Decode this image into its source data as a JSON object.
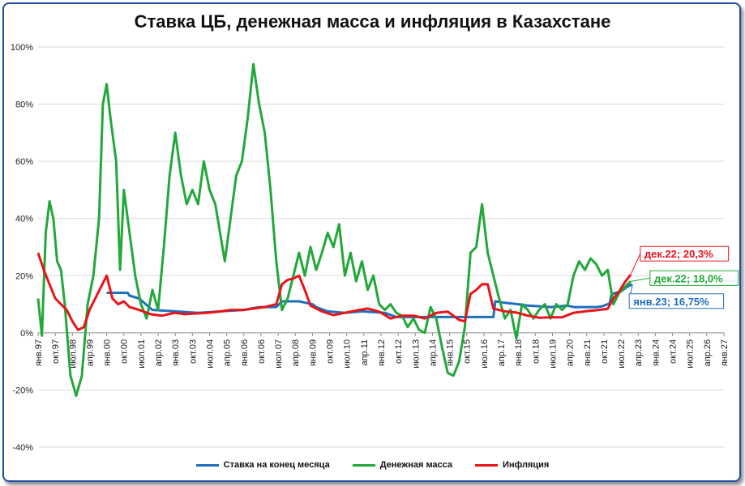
{
  "chart_data": {
    "type": "line",
    "title": "Ставка ЦБ, денежная масса и инфляция в Казахстане",
    "ylim": [
      -40,
      100
    ],
    "y_ticks": [
      "-40%",
      "-20%",
      "0%",
      "20%",
      "40%",
      "60%",
      "80%",
      "100%"
    ],
    "y_tick_values": [
      -40,
      -20,
      0,
      20,
      40,
      60,
      80,
      100
    ],
    "grid": true,
    "legend_position": "bottom",
    "x_start": "1997-01",
    "x_end": "2027-01",
    "x_tick_labels": [
      "янв.97",
      "окт.97",
      "июл.98",
      "апр.99",
      "янв.00",
      "окт.00",
      "июл.01",
      "апр.02",
      "янв.03",
      "окт.03",
      "июл.04",
      "апр.05",
      "янв.06",
      "окт.06",
      "июл.07",
      "апр.08",
      "янв.09",
      "окт.09",
      "июл.10",
      "апр.11",
      "янв.12",
      "окт.12",
      "июл.13",
      "апр.14",
      "янв.15",
      "окт.15",
      "июл.16",
      "апр.17",
      "янв.18",
      "окт.18",
      "июл.19",
      "апр.20",
      "янв.21",
      "окт.21",
      "июл.22",
      "апр.23",
      "янв.24",
      "окт.24",
      "июл.25",
      "апр.26",
      "янв.27"
    ],
    "series": [
      {
        "name": "Ставка на конец месяца",
        "color": "#1f6fbf",
        "points": [
          [
            "2000-01",
            14
          ],
          [
            "2000-12",
            14
          ],
          [
            "2001-01",
            13
          ],
          [
            "2001-06",
            12
          ],
          [
            "2002-01",
            8
          ],
          [
            "2003-01",
            7.5
          ],
          [
            "2004-01",
            7
          ],
          [
            "2005-01",
            7.5
          ],
          [
            "2006-01",
            8
          ],
          [
            "2006-09",
            9
          ],
          [
            "2007-06",
            9
          ],
          [
            "2007-09",
            11
          ],
          [
            "2008-06",
            11
          ],
          [
            "2009-01",
            10
          ],
          [
            "2009-03",
            9
          ],
          [
            "2009-09",
            7.5
          ],
          [
            "2010-06",
            7
          ],
          [
            "2011-03",
            7.5
          ],
          [
            "2012-03",
            7
          ],
          [
            "2012-09",
            5.5
          ],
          [
            "2013-06",
            5.5
          ],
          [
            "2015-01",
            5.5
          ],
          [
            "2015-09",
            5.5
          ],
          [
            "2016-06",
            5.5
          ],
          [
            "2016-12",
            5.5
          ],
          [
            "2017-01",
            11
          ],
          [
            "2017-06",
            10.5
          ],
          [
            "2018-01",
            10
          ],
          [
            "2018-06",
            9.5
          ],
          [
            "2019-01",
            9.25
          ],
          [
            "2019-06",
            9
          ],
          [
            "2020-03",
            9.5
          ],
          [
            "2020-06",
            9
          ],
          [
            "2021-06",
            9
          ],
          [
            "2021-09",
            9.25
          ],
          [
            "2022-01",
            10.25
          ],
          [
            "2022-02",
            13.5
          ],
          [
            "2022-07",
            14.5
          ],
          [
            "2022-10",
            16
          ],
          [
            "2022-12",
            16.75
          ],
          [
            "2023-01",
            16.75
          ]
        ]
      },
      {
        "name": "Денежная масса",
        "color": "#22a83a",
        "points": [
          [
            "1997-01",
            12
          ],
          [
            "1997-03",
            -1
          ],
          [
            "1997-05",
            35
          ],
          [
            "1997-07",
            46
          ],
          [
            "1997-09",
            40
          ],
          [
            "1997-11",
            25
          ],
          [
            "1998-01",
            22
          ],
          [
            "1998-03",
            10
          ],
          [
            "1998-06",
            -15
          ],
          [
            "1998-09",
            -22
          ],
          [
            "1998-12",
            -15
          ],
          [
            "1999-03",
            10
          ],
          [
            "1999-06",
            20
          ],
          [
            "1999-09",
            40
          ],
          [
            "1999-11",
            80
          ],
          [
            "2000-01",
            87
          ],
          [
            "2000-03",
            75
          ],
          [
            "2000-06",
            60
          ],
          [
            "2000-08",
            22
          ],
          [
            "2000-10",
            50
          ],
          [
            "2001-01",
            35
          ],
          [
            "2001-04",
            20
          ],
          [
            "2001-07",
            10
          ],
          [
            "2001-10",
            5
          ],
          [
            "2002-01",
            15
          ],
          [
            "2002-04",
            8
          ],
          [
            "2002-07",
            30
          ],
          [
            "2002-10",
            55
          ],
          [
            "2003-01",
            70
          ],
          [
            "2003-04",
            55
          ],
          [
            "2003-07",
            45
          ],
          [
            "2003-10",
            50
          ],
          [
            "2004-01",
            45
          ],
          [
            "2004-04",
            60
          ],
          [
            "2004-07",
            50
          ],
          [
            "2004-10",
            45
          ],
          [
            "2005-03",
            25
          ],
          [
            "2005-06",
            40
          ],
          [
            "2005-09",
            55
          ],
          [
            "2005-12",
            60
          ],
          [
            "2006-03",
            75
          ],
          [
            "2006-06",
            94
          ],
          [
            "2006-09",
            80
          ],
          [
            "2006-12",
            70
          ],
          [
            "2007-03",
            50
          ],
          [
            "2007-06",
            25
          ],
          [
            "2007-09",
            8
          ],
          [
            "2007-12",
            12
          ],
          [
            "2008-03",
            20
          ],
          [
            "2008-06",
            28
          ],
          [
            "2008-09",
            20
          ],
          [
            "2008-12",
            30
          ],
          [
            "2009-03",
            22
          ],
          [
            "2009-06",
            28
          ],
          [
            "2009-09",
            35
          ],
          [
            "2009-12",
            30
          ],
          [
            "2010-03",
            38
          ],
          [
            "2010-06",
            20
          ],
          [
            "2010-09",
            28
          ],
          [
            "2010-12",
            18
          ],
          [
            "2011-03",
            25
          ],
          [
            "2011-06",
            15
          ],
          [
            "2011-09",
            20
          ],
          [
            "2011-12",
            10
          ],
          [
            "2012-03",
            8
          ],
          [
            "2012-06",
            10
          ],
          [
            "2012-09",
            7
          ],
          [
            "2012-12",
            6
          ],
          [
            "2013-03",
            2
          ],
          [
            "2013-06",
            5
          ],
          [
            "2013-09",
            1
          ],
          [
            "2013-12",
            0
          ],
          [
            "2014-03",
            9
          ],
          [
            "2014-06",
            5
          ],
          [
            "2014-09",
            -5
          ],
          [
            "2014-12",
            -14
          ],
          [
            "2015-03",
            -15
          ],
          [
            "2015-06",
            -10
          ],
          [
            "2015-09",
            2
          ],
          [
            "2015-12",
            28
          ],
          [
            "2016-03",
            30
          ],
          [
            "2016-06",
            45
          ],
          [
            "2016-09",
            28
          ],
          [
            "2016-12",
            20
          ],
          [
            "2017-03",
            12
          ],
          [
            "2017-06",
            5
          ],
          [
            "2017-09",
            8
          ],
          [
            "2017-12",
            -2
          ],
          [
            "2018-03",
            10
          ],
          [
            "2018-06",
            8
          ],
          [
            "2018-09",
            5
          ],
          [
            "2018-12",
            8
          ],
          [
            "2019-03",
            10
          ],
          [
            "2019-06",
            5
          ],
          [
            "2019-09",
            10
          ],
          [
            "2019-12",
            8
          ],
          [
            "2020-03",
            10
          ],
          [
            "2020-06",
            20
          ],
          [
            "2020-09",
            25
          ],
          [
            "2020-12",
            22
          ],
          [
            "2021-03",
            26
          ],
          [
            "2021-06",
            24
          ],
          [
            "2021-09",
            20
          ],
          [
            "2021-12",
            22
          ],
          [
            "2022-03",
            10
          ],
          [
            "2022-06",
            14
          ],
          [
            "2022-09",
            16
          ],
          [
            "2022-12",
            18
          ]
        ]
      },
      {
        "name": "Инфляция",
        "color": "#e8141a",
        "points": [
          [
            "1997-01",
            28
          ],
          [
            "1997-04",
            22
          ],
          [
            "1997-07",
            17
          ],
          [
            "1997-10",
            12
          ],
          [
            "1998-01",
            10
          ],
          [
            "1998-04",
            8
          ],
          [
            "1998-07",
            4
          ],
          [
            "1998-10",
            1
          ],
          [
            "1999-01",
            2
          ],
          [
            "1999-04",
            8
          ],
          [
            "1999-07",
            12
          ],
          [
            "1999-10",
            16
          ],
          [
            "2000-01",
            20
          ],
          [
            "2000-04",
            12
          ],
          [
            "2000-07",
            10
          ],
          [
            "2000-10",
            11
          ],
          [
            "2001-01",
            9
          ],
          [
            "2001-06",
            8
          ],
          [
            "2001-12",
            6.5
          ],
          [
            "2002-06",
            6
          ],
          [
            "2003-01",
            7
          ],
          [
            "2003-06",
            6.5
          ],
          [
            "2004-01",
            6.8
          ],
          [
            "2004-06",
            7
          ],
          [
            "2005-01",
            7.5
          ],
          [
            "2005-06",
            8
          ],
          [
            "2006-01",
            8
          ],
          [
            "2006-06",
            8.5
          ],
          [
            "2006-12",
            9
          ],
          [
            "2007-06",
            10
          ],
          [
            "2007-09",
            17
          ],
          [
            "2007-12",
            18.5
          ],
          [
            "2008-03",
            19
          ],
          [
            "2008-06",
            20
          ],
          [
            "2008-09",
            15
          ],
          [
            "2008-12",
            9.5
          ],
          [
            "2009-06",
            7.5
          ],
          [
            "2009-12",
            6.2
          ],
          [
            "2010-06",
            7
          ],
          [
            "2010-12",
            7.8
          ],
          [
            "2011-06",
            8.5
          ],
          [
            "2011-12",
            7.4
          ],
          [
            "2012-06",
            5
          ],
          [
            "2012-12",
            6
          ],
          [
            "2013-06",
            6
          ],
          [
            "2013-12",
            5
          ],
          [
            "2014-06",
            7
          ],
          [
            "2014-12",
            7.4
          ],
          [
            "2015-06",
            4.5
          ],
          [
            "2015-09",
            4
          ],
          [
            "2015-12",
            13.6
          ],
          [
            "2016-03",
            15
          ],
          [
            "2016-06",
            17
          ],
          [
            "2016-09",
            17
          ],
          [
            "2016-12",
            8.5
          ],
          [
            "2017-06",
            7.5
          ],
          [
            "2017-12",
            7.1
          ],
          [
            "2018-06",
            6
          ],
          [
            "2018-12",
            5.3
          ],
          [
            "2019-06",
            5.4
          ],
          [
            "2019-12",
            5.4
          ],
          [
            "2020-06",
            7
          ],
          [
            "2020-12",
            7.5
          ],
          [
            "2021-06",
            7.9
          ],
          [
            "2021-12",
            8.4
          ],
          [
            "2022-03",
            12
          ],
          [
            "2022-06",
            14.5
          ],
          [
            "2022-09",
            17.7
          ],
          [
            "2022-12",
            20.3
          ]
        ]
      }
    ],
    "annotations": [
      {
        "text": "дек.22; 20,3%",
        "color": "#e8141a",
        "x": "2022-12",
        "y": 20.3
      },
      {
        "text": "дек.22; 18,0%",
        "color": "#22a83a",
        "x": "2022-12",
        "y": 18.0
      },
      {
        "text": "янв.23; 16,75%",
        "color": "#1f6fbf",
        "x": "2023-01",
        "y": 16.75
      }
    ]
  }
}
